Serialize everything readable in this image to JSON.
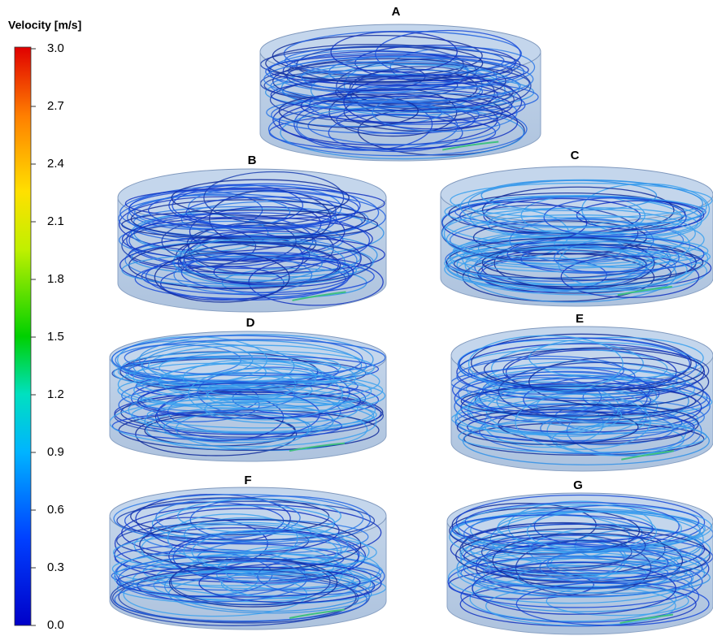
{
  "colorbar": {
    "title": "Velocity [m/s]",
    "ticks": [
      "3.0",
      "2.7",
      "2.4",
      "2.1",
      "1.8",
      "1.5",
      "1.2",
      "0.9",
      "0.6",
      "0.3",
      "0.0"
    ]
  },
  "panels": [
    {
      "label": "A"
    },
    {
      "label": "B"
    },
    {
      "label": "C"
    },
    {
      "label": "D"
    },
    {
      "label": "E"
    },
    {
      "label": "F"
    },
    {
      "label": "G"
    }
  ]
}
